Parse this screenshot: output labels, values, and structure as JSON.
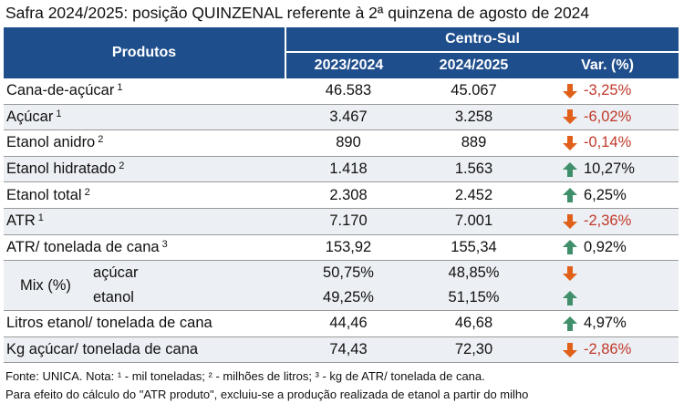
{
  "title": "Safra 2024/2025: posição QUINZENAL referente à 2ª quinzena de agosto de 2024",
  "header": {
    "produtos": "Produtos",
    "region": "Centro-Sul",
    "col1": "2023/2024",
    "col2": "2024/2025",
    "col3": "Var. (%)"
  },
  "rows": [
    {
      "name": "Cana-de-açúcar",
      "sup": "1",
      "v1": "46.583",
      "v2": "45.067",
      "dir": "down",
      "var": "-3,25%"
    },
    {
      "name": "Açúcar",
      "sup": "1",
      "v1": "3.467",
      "v2": "3.258",
      "dir": "down",
      "var": "-6,02%"
    },
    {
      "name": "Etanol anidro",
      "sup": "2",
      "v1": "890",
      "v2": "889",
      "dir": "down",
      "var": "-0,14%"
    },
    {
      "name": "Etanol hidratado",
      "sup": "2",
      "v1": "1.418",
      "v2": "1.563",
      "dir": "up",
      "var": "10,27%"
    },
    {
      "name": "Etanol total",
      "sup": "2",
      "v1": "2.308",
      "v2": "2.452",
      "dir": "up",
      "var": "6,25%"
    },
    {
      "name": "ATR",
      "sup": "1",
      "v1": "7.170",
      "v2": "7.001",
      "dir": "down",
      "var": "-2,36%"
    },
    {
      "name": "ATR/ tonelada de cana",
      "sup": "3",
      "v1": "153,92",
      "v2": "155,34",
      "dir": "up",
      "var": "0,92%"
    }
  ],
  "mix": {
    "label": "Mix (%)",
    "acucar": {
      "name": "açúcar",
      "v1": "50,75%",
      "v2": "48,85%",
      "dir": "down"
    },
    "etanol": {
      "name": "etanol",
      "v1": "49,25%",
      "v2": "51,15%",
      "dir": "up"
    }
  },
  "rows2": [
    {
      "name": "Litros etanol/ tonelada de cana",
      "v1": "44,46",
      "v2": "46,68",
      "dir": "up",
      "var": "4,97%"
    },
    {
      "name": "Kg açúcar/ tonelada de cana",
      "v1": "74,43",
      "v2": "72,30",
      "dir": "down",
      "var": "-2,86%"
    }
  ],
  "footer": {
    "line1": "Fonte: UNICA. Nota: ¹ - mil toneladas; ² - milhões de litros; ³ - kg de ATR/ tonelada de cana.",
    "line2": "Para efeito do cálculo do \"ATR produto\", excluiu-se a produção realizada de etanol a partir do milho"
  },
  "colors": {
    "header_bg": "#1f4e8c",
    "arrow_up": "#3f8f6a",
    "arrow_down": "#e0601a",
    "negative_text": "#c0392b"
  }
}
